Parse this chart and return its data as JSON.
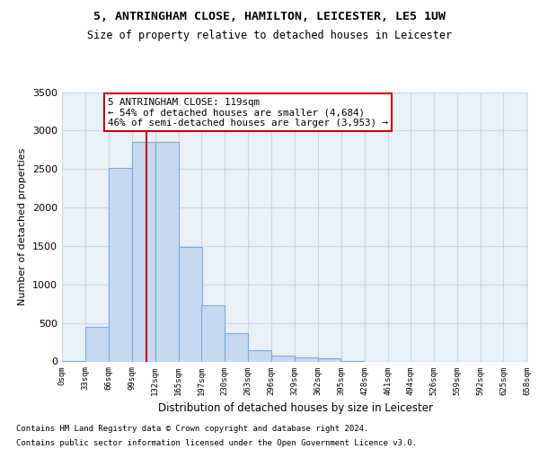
{
  "title1": "5, ANTRINGHAM CLOSE, HAMILTON, LEICESTER, LE5 1UW",
  "title2": "Size of property relative to detached houses in Leicester",
  "xlabel": "Distribution of detached houses by size in Leicester",
  "ylabel": "Number of detached properties",
  "footnote1": "Contains HM Land Registry data © Crown copyright and database right 2024.",
  "footnote2": "Contains public sector information licensed under the Open Government Licence v3.0.",
  "annotation_title": "5 ANTRINGHAM CLOSE: 119sqm",
  "annotation_line1": "← 54% of detached houses are smaller (4,684)",
  "annotation_line2": "46% of semi-detached houses are larger (3,953) →",
  "bin_starts": [
    0,
    33,
    66,
    99,
    132,
    165,
    197,
    230,
    263,
    296,
    329,
    362,
    395,
    428,
    461,
    494,
    526,
    559,
    592,
    625
  ],
  "bin_width": 33,
  "bin_labels": [
    "0sqm",
    "33sqm",
    "66sqm",
    "99sqm",
    "132sqm",
    "165sqm",
    "197sqm",
    "230sqm",
    "263sqm",
    "296sqm",
    "329sqm",
    "362sqm",
    "395sqm",
    "428sqm",
    "461sqm",
    "494sqm",
    "526sqm",
    "559sqm",
    "592sqm",
    "625sqm",
    "658sqm"
  ],
  "bar_heights": [
    5,
    450,
    2520,
    2850,
    2850,
    1490,
    730,
    370,
    145,
    80,
    55,
    45,
    10,
    0,
    0,
    0,
    0,
    0,
    0,
    0
  ],
  "bar_color": "#c6d9f0",
  "bar_edge_color": "#7aabdb",
  "vline_x": 119,
  "vline_color": "#cc0000",
  "ylim_max": 3500,
  "xlim_max": 660,
  "annotation_box_color": "#cc0000",
  "grid_color": "#c8d8e8",
  "background_color": "#e8f0f8",
  "yticks": [
    0,
    500,
    1000,
    1500,
    2000,
    2500,
    3000,
    3500
  ]
}
